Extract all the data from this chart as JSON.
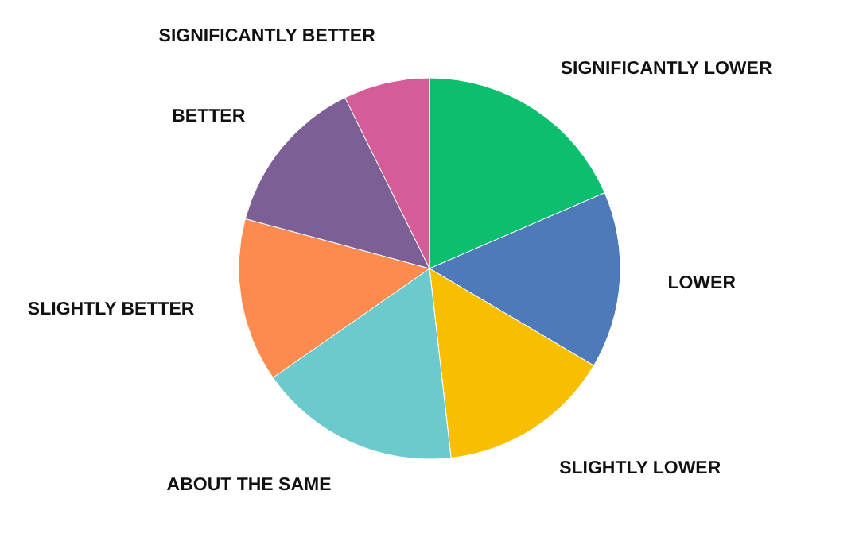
{
  "chart_data": {
    "type": "pie",
    "categories": [
      "SIGNIFICANTLY LOWER",
      "LOWER",
      "SLIGHTLY LOWER",
      "ABOUT THE SAME",
      "SLIGHTLY BETTER",
      "BETTER",
      "SIGNIFICANTLY BETTER"
    ],
    "values": [
      18.5,
      15.0,
      14.7,
      17.1,
      13.9,
      13.5,
      7.3
    ],
    "colors": [
      "#0bbf6e",
      "#4d7ab8",
      "#f8bf00",
      "#6dcacc",
      "#fd8b50",
      "#7c5f94",
      "#d45c97"
    ]
  }
}
